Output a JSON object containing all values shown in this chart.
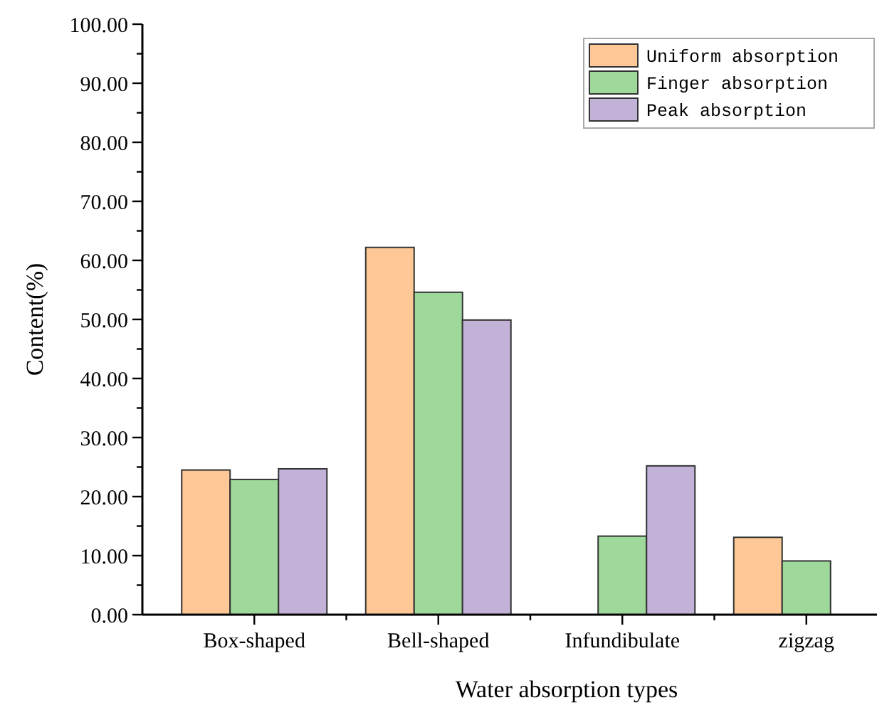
{
  "chart_data": {
    "type": "bar",
    "xlabel": "Water absorption types",
    "ylabel": "Content(%)",
    "categories": [
      "Box-shaped",
      "Bell-shaped",
      "Infundibulate",
      "zigzag"
    ],
    "series": [
      {
        "name": "Uniform absorption",
        "color": "#fdc896",
        "values": [
          24.5,
          62.2,
          0,
          13.1
        ]
      },
      {
        "name": "Finger absorption",
        "color": "#9fd89b",
        "values": [
          22.9,
          54.6,
          13.3,
          9.1
        ]
      },
      {
        "name": "Peak absorption",
        "color": "#c2b2d8",
        "values": [
          24.7,
          49.9,
          25.2,
          0
        ]
      }
    ],
    "ylim": [
      0,
      100
    ],
    "yticks": [
      {
        "value": 0,
        "label": "0.00"
      },
      {
        "value": 5,
        "label": null
      },
      {
        "value": 10,
        "label": "10.00"
      },
      {
        "value": 15,
        "label": null
      },
      {
        "value": 20,
        "label": "20.00"
      },
      {
        "value": 25,
        "label": null
      },
      {
        "value": 30,
        "label": "30.00"
      },
      {
        "value": 35,
        "label": null
      },
      {
        "value": 40,
        "label": "40.00"
      },
      {
        "value": 45,
        "label": null
      },
      {
        "value": 50,
        "label": "50.00"
      },
      {
        "value": 55,
        "label": null
      },
      {
        "value": 60,
        "label": "60.00"
      },
      {
        "value": 65,
        "label": null
      },
      {
        "value": 70,
        "label": "70.00"
      },
      {
        "value": 75,
        "label": null
      },
      {
        "value": 80,
        "label": "80.00"
      },
      {
        "value": 85,
        "label": null
      },
      {
        "value": 90,
        "label": "90.00"
      },
      {
        "value": 95,
        "label": null
      },
      {
        "value": 100,
        "label": "100.00"
      }
    ],
    "grid": false,
    "legend": "top right"
  }
}
